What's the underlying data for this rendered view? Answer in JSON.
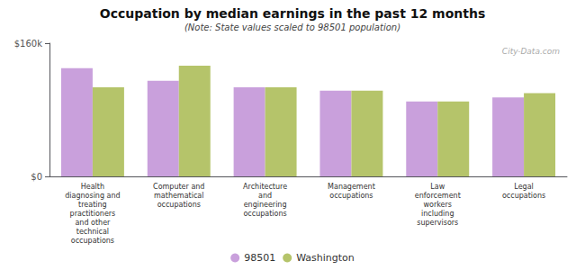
{
  "chart_data": {
    "type": "bar",
    "title": "Occupation by median earnings in the past 12 months",
    "subtitle": "(Note: State values scaled to 98501 population)",
    "annotations": [
      "City-Data.com"
    ],
    "categories": [
      "Health\ndiagnosing and\ntreating\npractitioners\nand other\ntechnical\noccupations",
      "Computer and\nmathematical\noccupations",
      "Architecture\nand\nengineering\noccupations",
      "Management\noccupations",
      "Law\nenforcement\nworkers\nincluding\nsupervisors",
      "Legal\noccupations"
    ],
    "series": [
      {
        "name": "98501",
        "color": "#c9a0dc",
        "values": [
          130000,
          115000,
          107000,
          103000,
          90000,
          95000
        ]
      },
      {
        "name": "Washington",
        "color": "#b5c46a",
        "values": [
          107000,
          133000,
          107000,
          103000,
          90000,
          100000
        ]
      }
    ],
    "ylim": [
      0,
      160000
    ],
    "yticks": [
      {
        "value": 0,
        "label": "$0"
      },
      {
        "value": 160000,
        "label": "$160k"
      }
    ],
    "grid": false,
    "legend": "bottom"
  }
}
